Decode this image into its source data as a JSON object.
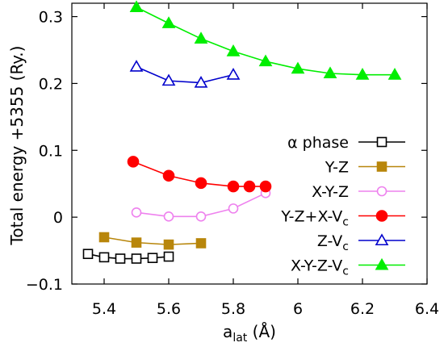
{
  "chart_data": {
    "type": "line",
    "xlabel": {
      "main": "a",
      "sub": "lat",
      "unit": " (Å)"
    },
    "ylabel": "Total energy +5355 (Ry.)",
    "xlim": [
      5.3,
      6.4
    ],
    "ylim": [
      -0.1,
      0.32
    ],
    "xticks": [
      {
        "value": 5.4,
        "label": "5.4"
      },
      {
        "value": 5.6,
        "label": "5.6"
      },
      {
        "value": 5.8,
        "label": "5.8"
      },
      {
        "value": 6.0,
        "label": "6"
      },
      {
        "value": 6.2,
        "label": "6.2"
      },
      {
        "value": 6.4,
        "label": "6.4"
      }
    ],
    "yticks": [
      {
        "value": -0.1,
        "label": "−0.1"
      },
      {
        "value": 0,
        "label": "0"
      },
      {
        "value": 0.1,
        "label": "0.1"
      },
      {
        "value": 0.2,
        "label": "0.2"
      },
      {
        "value": 0.3,
        "label": "0.3"
      }
    ],
    "grid": false,
    "legend_position": "right",
    "series": [
      {
        "name": "α phase",
        "name_sub": "",
        "color": "#000000",
        "marker": "square",
        "filled": false,
        "x": [
          5.35,
          5.4,
          5.45,
          5.5,
          5.55,
          5.6
        ],
        "y": [
          -0.055,
          -0.06,
          -0.062,
          -0.062,
          -0.061,
          -0.059
        ]
      },
      {
        "name": "Y-Z",
        "name_sub": "",
        "color": "#b8860b",
        "marker": "square",
        "filled": true,
        "x": [
          5.4,
          5.5,
          5.6,
          5.7
        ],
        "y": [
          -0.03,
          -0.038,
          -0.041,
          -0.039
        ]
      },
      {
        "name": "X-Y-Z",
        "name_sub": "",
        "color": "#ee82ee",
        "marker": "circle",
        "filled": false,
        "x": [
          5.5,
          5.6,
          5.7,
          5.8,
          5.9
        ],
        "y": [
          0.007,
          0.001,
          0.001,
          0.013,
          0.036
        ]
      },
      {
        "name": "Y-Z+X-V",
        "name_sub": "c",
        "color": "#ff0000",
        "marker": "circle",
        "filled": true,
        "x": [
          5.49,
          5.6,
          5.7,
          5.8,
          5.85,
          5.9
        ],
        "y": [
          0.083,
          0.062,
          0.051,
          0.046,
          0.046,
          0.046
        ]
      },
      {
        "name": "Z-V",
        "name_sub": "c",
        "color": "#0000cc",
        "marker": "triangle",
        "filled": false,
        "x": [
          5.5,
          5.6,
          5.7,
          5.8
        ],
        "y": [
          0.225,
          0.204,
          0.201,
          0.213
        ]
      },
      {
        "name": "X-Y-Z-V",
        "name_sub": "c",
        "color": "#00ee00",
        "marker": "triangle",
        "filled": true,
        "x": [
          5.5,
          5.6,
          5.7,
          5.8,
          5.9,
          6.0,
          6.1,
          6.2,
          6.3
        ],
        "y": [
          0.314,
          0.29,
          0.267,
          0.248,
          0.233,
          0.222,
          0.215,
          0.213,
          0.213
        ]
      }
    ]
  }
}
